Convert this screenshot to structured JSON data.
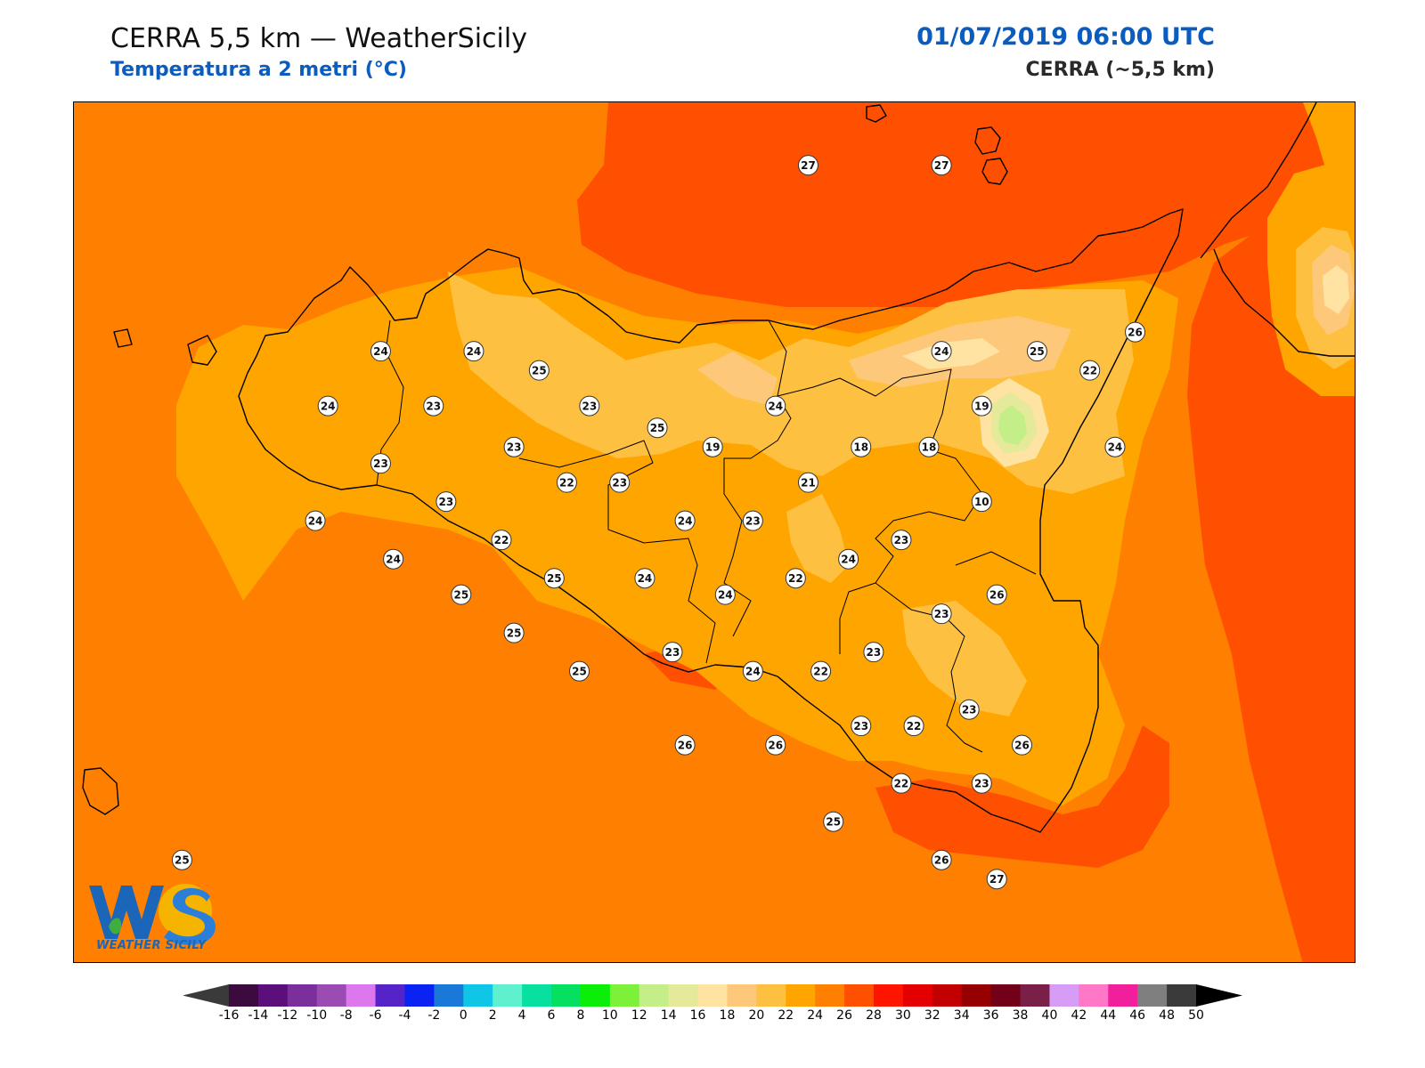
{
  "header": {
    "title": "CERRA 5,5 km — WeatherSicily",
    "subtitle": "Temperatura a 2 metri (°C)",
    "datetime": "01/07/2019 06:00 UTC",
    "model": "CERRA (~5,5 km)"
  },
  "logo": {
    "text": "WS",
    "caption": "WEATHER SICILY"
  },
  "colorbar": {
    "ticks": [
      "-16",
      "-14",
      "-12",
      "-10",
      "-8",
      "-6",
      "-4",
      "-2",
      "0",
      "2",
      "4",
      "6",
      "8",
      "10",
      "12",
      "14",
      "16",
      "18",
      "20",
      "22",
      "24",
      "26",
      "28",
      "30",
      "32",
      "34",
      "36",
      "38",
      "40",
      "42",
      "44",
      "46",
      "48",
      "50"
    ],
    "colors": [
      "#3b0b3f",
      "#5c0e7a",
      "#7a2f9c",
      "#9a4cb3",
      "#dd77ee",
      "#5523c7",
      "#0a22f2",
      "#1a78d9",
      "#10c6e6",
      "#5ff0cf",
      "#08e0a0",
      "#05e060",
      "#0aee0a",
      "#7df03a",
      "#c4ee88",
      "#e4ea9a",
      "#fee3a2",
      "#fec87a",
      "#fec040",
      "#ffa500",
      "#ff8000",
      "#ff4f00",
      "#ff1400",
      "#e40000",
      "#c20000",
      "#960000",
      "#720018",
      "#7a2048",
      "#d69cf6",
      "#ff78c8",
      "#f11f9c",
      "#7f7f7f",
      "#3a3a3a"
    ],
    "low_cap_color": "#3a3a3a",
    "high_cap_color": "#000000"
  },
  "map": {
    "stations": [
      {
        "label": "27",
        "lon": 14.42,
        "lat": 38.92
      },
      {
        "label": "27",
        "lon": 14.95,
        "lat": 38.92
      },
      {
        "label": "24",
        "lon": 12.72,
        "lat": 38.24
      },
      {
        "label": "24",
        "lon": 13.09,
        "lat": 38.24
      },
      {
        "label": "25",
        "lon": 13.35,
        "lat": 38.17
      },
      {
        "label": "24",
        "lon": 12.51,
        "lat": 38.04
      },
      {
        "label": "23",
        "lon": 12.93,
        "lat": 38.04
      },
      {
        "label": "23",
        "lon": 13.55,
        "lat": 38.04
      },
      {
        "label": "25",
        "lon": 13.82,
        "lat": 37.96
      },
      {
        "label": "24",
        "lon": 14.29,
        "lat": 38.04
      },
      {
        "label": "24",
        "lon": 14.95,
        "lat": 38.24
      },
      {
        "label": "25",
        "lon": 15.33,
        "lat": 38.24
      },
      {
        "label": "26",
        "lon": 15.72,
        "lat": 38.31
      },
      {
        "label": "22",
        "lon": 15.54,
        "lat": 38.17
      },
      {
        "label": "19",
        "lon": 15.11,
        "lat": 38.04
      },
      {
        "label": "19",
        "lon": 14.04,
        "lat": 37.89
      },
      {
        "label": "18",
        "lon": 14.63,
        "lat": 37.89
      },
      {
        "label": "18",
        "lon": 14.9,
        "lat": 37.89
      },
      {
        "label": "24",
        "lon": 15.64,
        "lat": 37.89
      },
      {
        "label": "23",
        "lon": 12.72,
        "lat": 37.83
      },
      {
        "label": "23",
        "lon": 13.25,
        "lat": 37.89
      },
      {
        "label": "22",
        "lon": 13.46,
        "lat": 37.76
      },
      {
        "label": "23",
        "lon": 13.67,
        "lat": 37.76
      },
      {
        "label": "21",
        "lon": 14.42,
        "lat": 37.76
      },
      {
        "label": "10",
        "lon": 15.11,
        "lat": 37.69
      },
      {
        "label": "23",
        "lon": 12.98,
        "lat": 37.69
      },
      {
        "label": "24",
        "lon": 12.46,
        "lat": 37.62
      },
      {
        "label": "24",
        "lon": 13.93,
        "lat": 37.62
      },
      {
        "label": "23",
        "lon": 14.2,
        "lat": 37.62
      },
      {
        "label": "22",
        "lon": 13.2,
        "lat": 37.55
      },
      {
        "label": "23",
        "lon": 14.79,
        "lat": 37.55
      },
      {
        "label": "24",
        "lon": 12.77,
        "lat": 37.48
      },
      {
        "label": "24",
        "lon": 14.58,
        "lat": 37.48
      },
      {
        "label": "25",
        "lon": 13.41,
        "lat": 37.41
      },
      {
        "label": "24",
        "lon": 13.77,
        "lat": 37.41
      },
      {
        "label": "22",
        "lon": 14.37,
        "lat": 37.41
      },
      {
        "label": "24",
        "lon": 14.09,
        "lat": 37.35
      },
      {
        "label": "26",
        "lon": 15.17,
        "lat": 37.35
      },
      {
        "label": "25",
        "lon": 13.04,
        "lat": 37.35
      },
      {
        "label": "23",
        "lon": 14.95,
        "lat": 37.28
      },
      {
        "label": "25",
        "lon": 13.25,
        "lat": 37.21
      },
      {
        "label": "23",
        "lon": 13.88,
        "lat": 37.14
      },
      {
        "label": "23",
        "lon": 14.68,
        "lat": 37.14
      },
      {
        "label": "24",
        "lon": 14.2,
        "lat": 37.07
      },
      {
        "label": "22",
        "lon": 14.47,
        "lat": 37.07
      },
      {
        "label": "25",
        "lon": 13.51,
        "lat": 37.07
      },
      {
        "label": "23",
        "lon": 15.06,
        "lat": 36.93
      },
      {
        "label": "23",
        "lon": 14.63,
        "lat": 36.87
      },
      {
        "label": "22",
        "lon": 14.84,
        "lat": 36.87
      },
      {
        "label": "26",
        "lon": 13.93,
        "lat": 36.8
      },
      {
        "label": "26",
        "lon": 14.29,
        "lat": 36.8
      },
      {
        "label": "26",
        "lon": 15.27,
        "lat": 36.8
      },
      {
        "label": "22",
        "lon": 14.79,
        "lat": 36.66
      },
      {
        "label": "23",
        "lon": 15.11,
        "lat": 36.66
      },
      {
        "label": "25",
        "lon": 14.52,
        "lat": 36.52
      },
      {
        "label": "26",
        "lon": 14.95,
        "lat": 36.38
      },
      {
        "label": "27",
        "lon": 15.17,
        "lat": 36.31
      },
      {
        "label": "25",
        "lon": 11.93,
        "lat": 36.38
      }
    ]
  }
}
